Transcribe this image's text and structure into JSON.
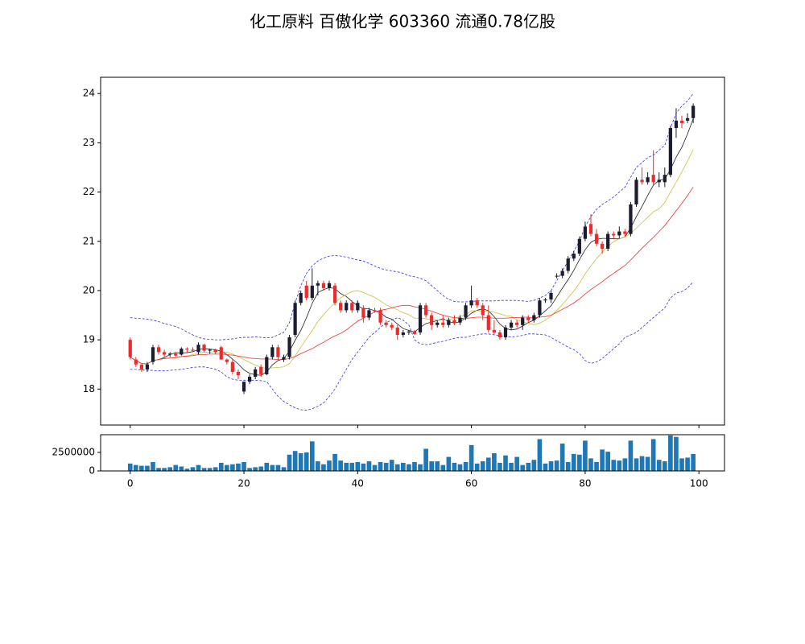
{
  "chart_data": [
    {
      "type": "candlestick",
      "title": "化工原料 百傲化学 603360 流通0.78亿股",
      "up_color": "#1c1c30",
      "down_color": "#ee2a2a",
      "xlim": [
        -5.2,
        104.5
      ],
      "ylim": [
        17.27,
        24.33
      ],
      "yticks": [
        18,
        19,
        20,
        21,
        22,
        23,
        24
      ],
      "open": [
        19.0,
        18.6,
        18.5,
        18.4,
        18.55,
        18.85,
        18.75,
        18.7,
        18.72,
        18.7,
        18.82,
        18.8,
        18.75,
        18.9,
        18.78,
        18.8,
        18.85,
        18.6,
        18.55,
        18.35,
        17.95,
        18.15,
        18.25,
        18.45,
        18.3,
        18.65,
        18.85,
        18.6,
        18.65,
        19.1,
        19.75,
        20.1,
        19.85,
        20.1,
        20.15,
        20.05,
        20.1,
        19.75,
        19.6,
        19.75,
        19.6,
        19.65,
        19.45,
        19.6,
        19.6,
        19.35,
        19.3,
        19.25,
        19.1,
        19.15,
        19.17,
        19.15,
        19.7,
        19.5,
        19.3,
        19.35,
        19.3,
        19.4,
        19.35,
        19.45,
        19.7,
        19.8,
        19.7,
        19.5,
        19.2,
        19.15,
        19.05,
        19.25,
        19.35,
        19.3,
        19.45,
        19.4,
        19.5,
        19.8,
        19.82,
        20.3,
        20.3,
        20.4,
        20.65,
        20.75,
        21.05,
        21.35,
        21.15,
        20.95,
        20.85,
        21.15,
        21.12,
        21.2,
        21.15,
        21.75,
        22.25,
        22.2,
        22.35,
        22.2,
        22.2,
        22.35,
        23.3,
        23.45,
        23.45,
        23.5
      ],
      "high": [
        19.05,
        18.65,
        18.5,
        18.55,
        18.9,
        18.9,
        18.8,
        18.75,
        18.75,
        18.85,
        18.85,
        18.85,
        18.95,
        18.92,
        18.82,
        18.82,
        18.88,
        18.62,
        18.6,
        18.4,
        18.15,
        18.3,
        18.45,
        18.5,
        18.7,
        18.9,
        18.9,
        18.7,
        19.1,
        19.8,
        20.0,
        20.2,
        20.45,
        20.2,
        20.2,
        20.2,
        20.15,
        19.8,
        19.8,
        19.8,
        19.8,
        19.7,
        19.65,
        19.65,
        19.65,
        19.4,
        19.35,
        19.3,
        19.2,
        19.2,
        19.2,
        19.75,
        19.75,
        19.55,
        19.4,
        19.5,
        19.45,
        19.5,
        19.5,
        19.75,
        20.1,
        19.85,
        19.75,
        19.7,
        19.4,
        19.2,
        19.3,
        19.4,
        19.4,
        19.5,
        19.5,
        19.55,
        19.85,
        19.85,
        20.0,
        20.35,
        20.45,
        20.7,
        20.8,
        21.1,
        21.4,
        21.55,
        21.25,
        21.0,
        21.2,
        21.2,
        21.3,
        21.25,
        21.8,
        22.3,
        22.5,
        22.4,
        22.85,
        22.4,
        22.5,
        23.35,
        23.7,
        23.55,
        23.6,
        23.8
      ],
      "low": [
        18.6,
        18.45,
        18.35,
        18.35,
        18.5,
        18.7,
        18.65,
        18.65,
        18.65,
        18.68,
        18.75,
        18.75,
        18.7,
        18.75,
        18.72,
        18.7,
        18.6,
        18.5,
        18.3,
        18.2,
        17.9,
        18.1,
        18.2,
        18.25,
        18.28,
        18.6,
        18.6,
        18.55,
        18.6,
        19.05,
        19.7,
        19.8,
        19.8,
        19.9,
        20.0,
        20.0,
        19.7,
        19.55,
        19.55,
        19.55,
        19.55,
        19.35,
        19.4,
        19.55,
        19.3,
        19.25,
        19.2,
        19.0,
        19.05,
        19.1,
        19.1,
        19.1,
        19.45,
        19.2,
        19.25,
        19.25,
        19.25,
        19.3,
        19.3,
        19.4,
        19.65,
        19.65,
        19.4,
        19.15,
        19.1,
        19.0,
        19.0,
        19.2,
        19.25,
        19.2,
        19.35,
        19.35,
        19.45,
        19.75,
        19.75,
        20.25,
        20.25,
        20.35,
        20.6,
        20.7,
        21.0,
        21.1,
        20.9,
        20.75,
        20.8,
        21.05,
        21.05,
        21.1,
        21.1,
        21.7,
        22.15,
        22.15,
        22.15,
        22.1,
        22.1,
        22.3,
        23.1,
        23.3,
        23.4,
        23.4
      ],
      "close": [
        18.65,
        18.5,
        18.4,
        18.5,
        18.85,
        18.75,
        18.7,
        18.72,
        18.68,
        18.82,
        18.8,
        18.78,
        18.9,
        18.78,
        18.8,
        18.75,
        18.6,
        18.55,
        18.35,
        18.28,
        18.15,
        18.25,
        18.4,
        18.3,
        18.65,
        18.85,
        18.65,
        18.65,
        19.05,
        19.75,
        19.95,
        19.85,
        20.1,
        20.15,
        20.05,
        20.15,
        19.75,
        19.6,
        19.75,
        19.6,
        19.75,
        19.45,
        19.6,
        19.58,
        19.35,
        19.3,
        19.25,
        19.1,
        19.15,
        19.17,
        19.12,
        19.7,
        19.5,
        19.3,
        19.35,
        19.3,
        19.4,
        19.35,
        19.45,
        19.7,
        19.8,
        19.7,
        19.5,
        19.2,
        19.15,
        19.05,
        19.25,
        19.35,
        19.3,
        19.45,
        19.4,
        19.5,
        19.8,
        19.82,
        19.95,
        20.3,
        20.4,
        20.65,
        20.75,
        21.05,
        21.3,
        21.15,
        20.95,
        20.85,
        21.15,
        21.12,
        21.2,
        21.15,
        21.75,
        22.25,
        22.2,
        22.3,
        22.2,
        22.25,
        22.35,
        23.3,
        23.45,
        23.4,
        23.5,
        23.75
      ],
      "lines": [
        {
          "color": "#222222",
          "style": "solid",
          "values": [
            18.65,
            18.58,
            18.52,
            18.51,
            18.58,
            18.6,
            18.64,
            18.7,
            18.74,
            18.73,
            18.74,
            18.76,
            18.8,
            18.82,
            18.81,
            18.8,
            18.77,
            18.7,
            18.61,
            18.51,
            18.39,
            18.32,
            18.29,
            18.28,
            18.35,
            18.49,
            18.58,
            18.62,
            18.77,
            18.99,
            19.19,
            19.45,
            19.74,
            19.96,
            20.02,
            20.06,
            20.04,
            19.94,
            19.88,
            19.78,
            19.69,
            19.63,
            19.63,
            19.59,
            19.55,
            19.46,
            19.42,
            19.32,
            19.23,
            19.19,
            19.16,
            19.25,
            19.33,
            19.36,
            19.39,
            19.43,
            19.37,
            19.34,
            19.37,
            19.44,
            19.54,
            19.6,
            19.63,
            19.59,
            19.47,
            19.32,
            19.23,
            19.2,
            19.22,
            19.28,
            19.35,
            19.4,
            19.49,
            19.59,
            19.69,
            19.87,
            20.05,
            20.22,
            20.41,
            20.63,
            20.83,
            20.98,
            21.04,
            21.06,
            21.06,
            21.05,
            21.05,
            21.09,
            21.27,
            21.5,
            21.71,
            21.93,
            22.14,
            22.24,
            22.26,
            22.46,
            22.71,
            22.91,
            23.18,
            23.49
          ]
        },
        {
          "color": "#c8c040",
          "style": "solid",
          "values": [
            18.65,
            18.58,
            18.52,
            18.51,
            18.58,
            18.6,
            18.62,
            18.63,
            18.64,
            18.66,
            18.67,
            18.7,
            18.72,
            18.75,
            18.75,
            18.76,
            18.75,
            18.75,
            18.71,
            18.66,
            18.6,
            18.54,
            18.49,
            18.44,
            18.42,
            18.43,
            18.44,
            18.45,
            18.52,
            18.67,
            18.85,
            19.02,
            19.19,
            19.37,
            19.51,
            19.64,
            19.75,
            19.85,
            19.92,
            19.98,
            20.0,
            19.96,
            19.91,
            19.86,
            19.79,
            19.71,
            19.66,
            19.61,
            19.55,
            19.51,
            19.44,
            19.44,
            19.43,
            19.4,
            19.4,
            19.4,
            19.41,
            19.44,
            19.47,
            19.52,
            19.59,
            19.59,
            19.59,
            19.58,
            19.56,
            19.53,
            19.49,
            19.48,
            19.4,
            19.37,
            19.33,
            19.31,
            19.34,
            19.4,
            19.48,
            19.6,
            19.72,
            19.85,
            19.99,
            20.15,
            20.34,
            20.5,
            20.65,
            20.78,
            20.9,
            20.99,
            21.05,
            21.09,
            21.16,
            21.27,
            21.38,
            21.49,
            21.6,
            21.66,
            21.79,
            22.0,
            22.2,
            22.41,
            22.63,
            22.86
          ]
        },
        {
          "color": "#ee3030",
          "style": "solid",
          "values": [
            18.65,
            18.58,
            18.52,
            18.51,
            18.58,
            18.6,
            18.62,
            18.63,
            18.64,
            18.66,
            18.67,
            18.68,
            18.7,
            18.7,
            18.71,
            18.71,
            18.71,
            18.7,
            18.69,
            18.67,
            18.65,
            18.63,
            18.62,
            18.61,
            18.61,
            18.61,
            18.6,
            18.6,
            18.62,
            18.66,
            18.72,
            18.77,
            18.82,
            18.89,
            18.95,
            19.02,
            19.08,
            19.13,
            19.2,
            19.29,
            19.38,
            19.44,
            19.5,
            19.57,
            19.6,
            19.62,
            19.65,
            19.68,
            19.7,
            19.7,
            19.67,
            19.65,
            19.62,
            19.58,
            19.54,
            19.5,
            19.47,
            19.45,
            19.44,
            19.43,
            19.45,
            19.46,
            19.46,
            19.45,
            19.44,
            19.44,
            19.44,
            19.45,
            19.45,
            19.46,
            19.46,
            19.45,
            19.46,
            19.47,
            19.5,
            19.56,
            19.62,
            19.68,
            19.75,
            19.83,
            19.93,
            20.02,
            20.1,
            20.18,
            20.27,
            20.35,
            20.43,
            20.51,
            20.62,
            20.74,
            20.86,
            20.97,
            21.08,
            21.2,
            21.32,
            21.47,
            21.62,
            21.77,
            21.93,
            22.1
          ]
        },
        {
          "color": "#3030ee",
          "style": "dashed",
          "values": [
            19.45,
            19.44,
            19.43,
            19.42,
            19.4,
            19.37,
            19.33,
            19.3,
            19.27,
            19.22,
            19.16,
            19.1,
            19.05,
            19.02,
            19.01,
            19.0,
            19.0,
            19.01,
            19.02,
            19.04,
            19.05,
            19.05,
            19.06,
            19.05,
            19.04,
            19.05,
            19.1,
            19.15,
            19.35,
            19.75,
            20.1,
            20.35,
            20.5,
            20.6,
            20.66,
            20.7,
            20.71,
            20.7,
            20.68,
            20.65,
            20.62,
            20.6,
            20.55,
            20.5,
            20.45,
            20.42,
            20.4,
            20.38,
            20.35,
            20.3,
            20.28,
            20.25,
            20.2,
            20.1,
            20.0,
            19.9,
            19.82,
            19.78,
            19.77,
            19.77,
            19.78,
            19.79,
            19.79,
            19.79,
            19.79,
            19.8,
            19.8,
            19.8,
            19.8,
            19.79,
            19.78,
            19.8,
            19.85,
            19.9,
            20.0,
            20.2,
            20.4,
            20.6,
            20.8,
            21.0,
            21.3,
            21.5,
            21.65,
            21.75,
            21.82,
            21.9,
            22.0,
            22.1,
            22.3,
            22.5,
            22.6,
            22.7,
            22.75,
            22.85,
            22.95,
            23.3,
            23.6,
            23.75,
            23.85,
            24.0
          ]
        },
        {
          "color": "#3030ee",
          "style": "dashed",
          "values": [
            18.4,
            18.4,
            18.39,
            18.38,
            18.38,
            18.37,
            18.37,
            18.38,
            18.39,
            18.4,
            18.42,
            18.44,
            18.45,
            18.45,
            18.43,
            18.4,
            18.35,
            18.25,
            18.2,
            18.18,
            18.18,
            18.18,
            18.18,
            18.17,
            18.15,
            18.0,
            17.85,
            17.75,
            17.68,
            17.62,
            17.58,
            17.57,
            17.6,
            17.65,
            17.72,
            17.85,
            18.0,
            18.2,
            18.4,
            18.6,
            18.75,
            18.9,
            19.05,
            19.15,
            19.25,
            19.35,
            19.4,
            19.45,
            19.4,
            19.3,
            19.0,
            18.92,
            18.9,
            18.92,
            18.95,
            18.97,
            19.0,
            19.03,
            19.05,
            19.05,
            19.08,
            19.1,
            19.12,
            19.12,
            19.1,
            19.08,
            19.07,
            19.06,
            19.07,
            19.09,
            19.12,
            19.12,
            19.11,
            19.1,
            19.05,
            18.98,
            18.92,
            18.85,
            18.8,
            18.72,
            18.58,
            18.52,
            18.55,
            18.62,
            18.72,
            18.82,
            18.92,
            19.05,
            19.1,
            19.15,
            19.25,
            19.35,
            19.45,
            19.55,
            19.65,
            19.85,
            19.95,
            19.98,
            20.05,
            20.18
          ]
        }
      ]
    },
    {
      "type": "bar",
      "color": "#1f77b4",
      "xlim": [
        -5.2,
        104.5
      ],
      "xticks": [
        0,
        20,
        40,
        60,
        80,
        100
      ],
      "ylim": [
        0,
        4900000
      ],
      "yticks": [
        0,
        2500000
      ],
      "values": [
        1000000,
        800000,
        700000,
        700000,
        1200000,
        400000,
        400000,
        500000,
        800000,
        600000,
        300000,
        500000,
        800000,
        400000,
        400000,
        500000,
        1100000,
        800000,
        900000,
        1000000,
        1200000,
        400000,
        500000,
        600000,
        1100000,
        800000,
        800000,
        500000,
        2200000,
        2700000,
        2400000,
        2500000,
        4000000,
        1300000,
        900000,
        1400000,
        2300000,
        1400000,
        1100000,
        1100000,
        1200000,
        1000000,
        1300000,
        800000,
        1200000,
        1100000,
        1500000,
        900000,
        1100000,
        900000,
        1200000,
        900000,
        3000000,
        1300000,
        1300000,
        800000,
        1900000,
        1100000,
        900000,
        1200000,
        3500000,
        1000000,
        1300000,
        1800000,
        2400000,
        1100000,
        2100000,
        1100000,
        1900000,
        800000,
        1100000,
        1500000,
        4300000,
        1000000,
        1300000,
        1400000,
        3700000,
        1200000,
        2300000,
        2200000,
        4100000,
        1700000,
        1200000,
        2900000,
        2600000,
        1500000,
        1400000,
        1700000,
        4100000,
        1700000,
        2000000,
        1900000,
        4300000,
        1500000,
        1300000,
        4800000,
        4600000,
        1700000,
        1800000,
        2300000
      ]
    }
  ]
}
